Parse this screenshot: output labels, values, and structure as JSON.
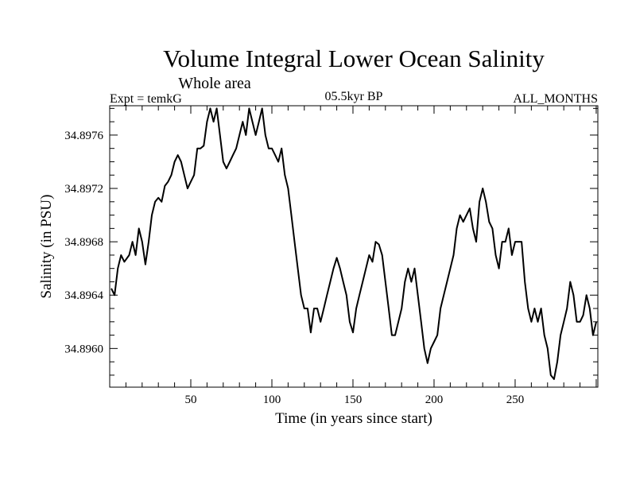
{
  "chart_data": {
    "type": "line",
    "title": "Volume Integral Lower Ocean Salinity",
    "subtitle": "Whole area",
    "left_label": "Expt = temkG",
    "center_label": "05.5kyr BP",
    "right_label": "ALL_MONTHS",
    "xlabel": "Time (in years since start)",
    "ylabel": "Salinity (in PSU)",
    "xlim": [
      0,
      301
    ],
    "ylim": [
      34.89571,
      34.89782
    ],
    "xticks": [
      50,
      100,
      150,
      200,
      250
    ],
    "xtick_labels": [
      "50",
      "100",
      "150",
      "200",
      "250"
    ],
    "yticks": [
      34.896,
      34.8964,
      34.8968,
      34.8972,
      34.8976
    ],
    "ytick_labels": [
      "34.8960",
      "34.8964",
      "34.8968",
      "34.8972",
      "34.8976"
    ],
    "grid": false,
    "series": [
      {
        "name": "salinity",
        "color": "#000000",
        "x": [
          1,
          3,
          5,
          7,
          9,
          12,
          14,
          16,
          18,
          20,
          22,
          24,
          26,
          28,
          30,
          32,
          34,
          36,
          38,
          40,
          42,
          44,
          46,
          48,
          50,
          52,
          54,
          56,
          58,
          60,
          62,
          64,
          66,
          68,
          70,
          72,
          74,
          76,
          78,
          80,
          82,
          84,
          86,
          88,
          90,
          92,
          94,
          96,
          98,
          100,
          102,
          104,
          106,
          108,
          110,
          112,
          114,
          116,
          118,
          120,
          122,
          124,
          126,
          128,
          130,
          132,
          134,
          136,
          138,
          140,
          142,
          144,
          146,
          148,
          150,
          152,
          154,
          156,
          158,
          160,
          162,
          164,
          166,
          168,
          170,
          172,
          174,
          176,
          178,
          180,
          182,
          184,
          186,
          188,
          190,
          192,
          194,
          196,
          198,
          200,
          202,
          204,
          206,
          208,
          210,
          212,
          214,
          216,
          218,
          220,
          222,
          224,
          226,
          228,
          230,
          232,
          234,
          236,
          238,
          240,
          242,
          244,
          246,
          248,
          250,
          252,
          254,
          256,
          258,
          260,
          262,
          264,
          266,
          268,
          270,
          272,
          274,
          276,
          278,
          280,
          282,
          284,
          286,
          288,
          290,
          292,
          294,
          296,
          298,
          300
        ],
        "y": [
          34.89645,
          34.8964,
          34.8966,
          34.8967,
          34.89665,
          34.8967,
          34.8968,
          34.8967,
          34.8969,
          34.8968,
          34.89663,
          34.8968,
          34.897,
          34.8971,
          34.89713,
          34.8971,
          34.89722,
          34.89725,
          34.8973,
          34.8974,
          34.89745,
          34.8974,
          34.8973,
          34.8972,
          34.89725,
          34.8973,
          34.8975,
          34.8975,
          34.89752,
          34.8977,
          34.8978,
          34.8977,
          34.8978,
          34.8976,
          34.8974,
          34.89735,
          34.8974,
          34.89745,
          34.8975,
          34.8976,
          34.8977,
          34.8976,
          34.8978,
          34.8977,
          34.8976,
          34.8977,
          34.8978,
          34.8976,
          34.8975,
          34.8975,
          34.89745,
          34.8974,
          34.8975,
          34.8973,
          34.8972,
          34.897,
          34.8968,
          34.8966,
          34.8964,
          34.8963,
          34.8963,
          34.89612,
          34.8963,
          34.8963,
          34.8962,
          34.8963,
          34.8964,
          34.8965,
          34.8966,
          34.89668,
          34.8966,
          34.8965,
          34.8964,
          34.8962,
          34.89612,
          34.8963,
          34.8964,
          34.8965,
          34.8966,
          34.8967,
          34.89665,
          34.8968,
          34.89678,
          34.8967,
          34.8965,
          34.8963,
          34.8961,
          34.8961,
          34.8962,
          34.8963,
          34.8965,
          34.8966,
          34.8965,
          34.8966,
          34.8964,
          34.8962,
          34.896,
          34.89589,
          34.896,
          34.89605,
          34.8961,
          34.8963,
          34.8964,
          34.8965,
          34.8966,
          34.8967,
          34.8969,
          34.897,
          34.89695,
          34.897,
          34.89705,
          34.8969,
          34.8968,
          34.8971,
          34.8972,
          34.8971,
          34.89695,
          34.8969,
          34.8967,
          34.8966,
          34.8968,
          34.8968,
          34.8969,
          34.8967,
          34.8968,
          34.8968,
          34.8968,
          34.8965,
          34.8963,
          34.8962,
          34.8963,
          34.8962,
          34.8963,
          34.8961,
          34.896,
          34.8958,
          34.89577,
          34.8959,
          34.8961,
          34.8962,
          34.8963,
          34.8965,
          34.8964,
          34.8962,
          34.8962,
          34.89625,
          34.8964,
          34.8963,
          34.8961,
          34.8962
        ]
      }
    ]
  }
}
